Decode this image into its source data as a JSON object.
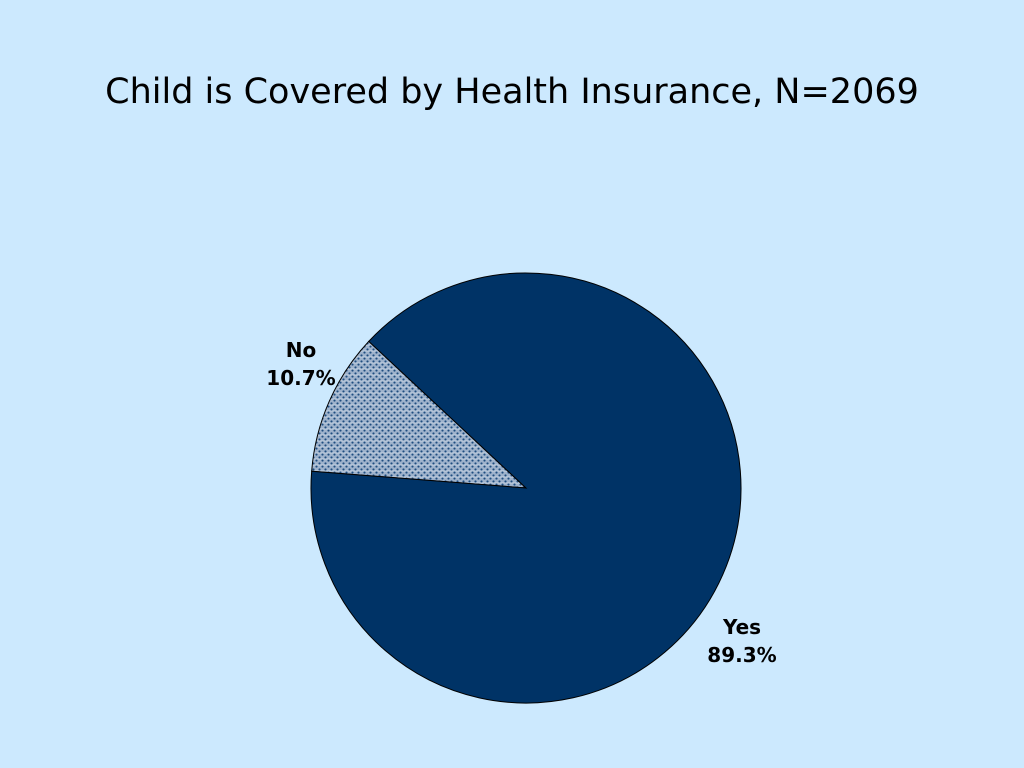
{
  "colors": {
    "background": "#cce9fe",
    "yes_slice": "#003366",
    "no_slice_base": "#9fb3cc",
    "no_slice_pattern": "#1f4d80",
    "outline": "#000000"
  },
  "chart_data": {
    "type": "pie",
    "title": "Child is Covered by Health Insurance, N=2069",
    "slices": [
      {
        "label": "No",
        "value": 10.7,
        "value_label": "10.7%"
      },
      {
        "label": "Yes",
        "value": 89.3,
        "value_label": "89.3%"
      }
    ]
  }
}
